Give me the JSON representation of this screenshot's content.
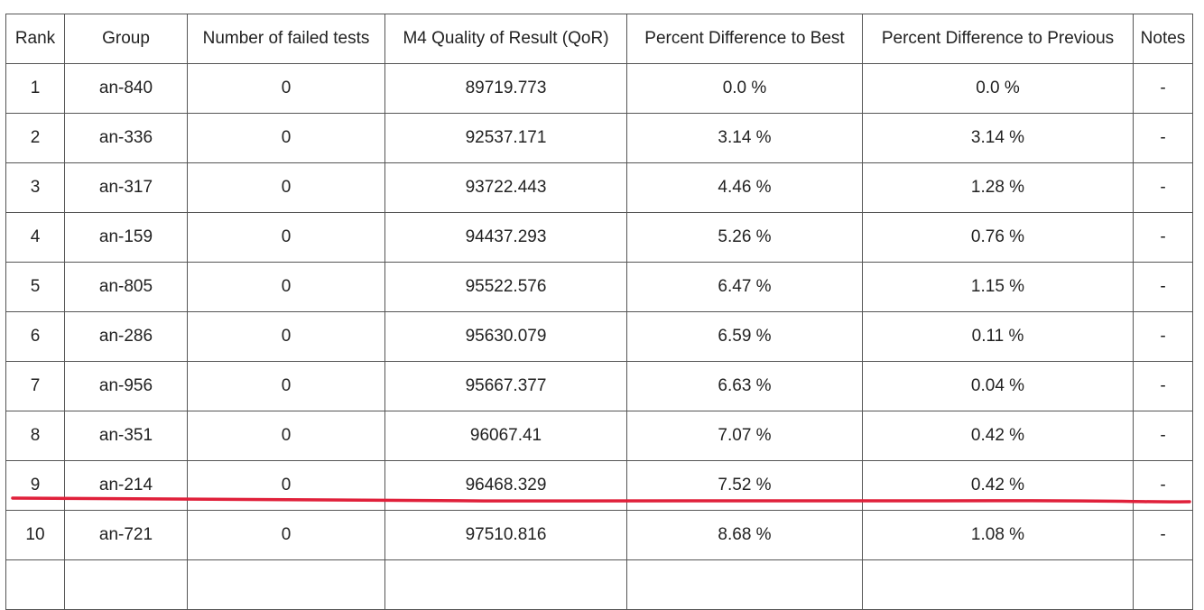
{
  "table": {
    "headers": [
      "Rank",
      "Group",
      "Number of failed tests",
      "M4 Quality of Result (QoR)",
      "Percent Difference to Best",
      "Percent Difference to Previous",
      "Notes"
    ],
    "rows": [
      [
        "1",
        "an-840",
        "0",
        "89719.773",
        "0.0 %",
        "0.0 %",
        "-"
      ],
      [
        "2",
        "an-336",
        "0",
        "92537.171",
        "3.14 %",
        "3.14 %",
        "-"
      ],
      [
        "3",
        "an-317",
        "0",
        "93722.443",
        "4.46 %",
        "1.28 %",
        "-"
      ],
      [
        "4",
        "an-159",
        "0",
        "94437.293",
        "5.26 %",
        "0.76 %",
        "-"
      ],
      [
        "5",
        "an-805",
        "0",
        "95522.576",
        "6.47 %",
        "1.15 %",
        "-"
      ],
      [
        "6",
        "an-286",
        "0",
        "95630.079",
        "6.59 %",
        "0.11 %",
        "-"
      ],
      [
        "7",
        "an-956",
        "0",
        "95667.377",
        "6.63 %",
        "0.04 %",
        "-"
      ],
      [
        "8",
        "an-351",
        "0",
        "96067.41",
        "7.07 %",
        "0.42 %",
        "-"
      ],
      [
        "9",
        "an-214",
        "0",
        "96468.329",
        "7.52 %",
        "0.42 %",
        "-"
      ],
      [
        "10",
        "an-721",
        "0",
        "97510.816",
        "8.68 %",
        "1.08 %",
        "-"
      ],
      [
        "",
        "",
        "",
        "",
        "",
        "",
        ""
      ]
    ]
  },
  "colors": {
    "grid_line": "#555555",
    "text": "#222222",
    "annotation_underline": "#e0203a"
  }
}
